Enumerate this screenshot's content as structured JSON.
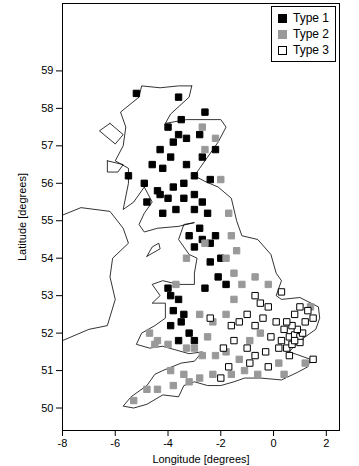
{
  "chart_data": {
    "type": "scatter",
    "x_label": "Longitude [degrees]",
    "y_label": "Latitude [degrees]",
    "xlim": [
      -8,
      2.5
    ],
    "ylim": [
      49.4,
      60.8
    ],
    "xticks": [
      -8,
      -6,
      -4,
      -2,
      0,
      2
    ],
    "yticks": [
      50,
      51,
      52,
      53,
      54,
      55,
      56,
      57,
      58,
      59
    ],
    "grid": false,
    "legend": "top-right",
    "series": [
      {
        "name": "Type 1",
        "color": "#000000",
        "marker": "square",
        "points": [
          [
            -3.6,
            58.3
          ],
          [
            -5.2,
            58.4
          ],
          [
            -3.5,
            57.7
          ],
          [
            -4.0,
            57.5
          ],
          [
            -3.6,
            57.3
          ],
          [
            -3.3,
            57.2
          ],
          [
            -3.8,
            57.1
          ],
          [
            -2.8,
            57.3
          ],
          [
            -4.3,
            56.9
          ],
          [
            -3.9,
            56.7
          ],
          [
            -3.3,
            56.5
          ],
          [
            -4.6,
            56.5
          ],
          [
            -4.2,
            56.4
          ],
          [
            -3.4,
            56.0
          ],
          [
            -4.9,
            56.0
          ],
          [
            -5.5,
            56.2
          ],
          [
            -3.8,
            55.9
          ],
          [
            -4.3,
            55.7
          ],
          [
            -4.0,
            55.6
          ],
          [
            -3.4,
            55.6
          ],
          [
            -3.0,
            55.7
          ],
          [
            -2.7,
            55.5
          ],
          [
            -3.7,
            55.3
          ],
          [
            -4.2,
            55.2
          ],
          [
            -3.0,
            55.3
          ],
          [
            -2.5,
            55.2
          ],
          [
            -2.8,
            54.8
          ],
          [
            -3.2,
            54.6
          ],
          [
            -2.7,
            54.5
          ],
          [
            -3.0,
            54.3
          ],
          [
            -2.4,
            54.4
          ],
          [
            -2.2,
            54.6
          ],
          [
            -2.0,
            54.0
          ],
          [
            -2.4,
            53.9
          ],
          [
            -2.1,
            53.5
          ],
          [
            -1.8,
            53.3
          ],
          [
            -2.6,
            53.2
          ],
          [
            -4.4,
            55.8
          ],
          [
            -4.8,
            55.5
          ],
          [
            -2.2,
            56.9
          ],
          [
            -2.7,
            56.7
          ],
          [
            -3.0,
            56.2
          ],
          [
            -2.4,
            56.1
          ],
          [
            -3.9,
            53.0
          ],
          [
            -3.6,
            52.9
          ],
          [
            -3.8,
            52.6
          ],
          [
            -3.4,
            52.5
          ],
          [
            -3.5,
            52.3
          ],
          [
            -3.9,
            52.2
          ],
          [
            -3.2,
            52.0
          ],
          [
            -3.6,
            51.8
          ],
          [
            -3.0,
            51.8
          ],
          [
            -4.0,
            53.2
          ],
          [
            -2.6,
            57.9
          ]
        ]
      },
      {
        "name": "Type 2",
        "color": "#999999",
        "marker": "square",
        "points": [
          [
            -2.7,
            57.5
          ],
          [
            -2.2,
            57.2
          ],
          [
            -2.6,
            56.9
          ],
          [
            -2.0,
            56.1
          ],
          [
            -1.7,
            55.2
          ],
          [
            -1.6,
            54.6
          ],
          [
            -1.4,
            54.2
          ],
          [
            -1.8,
            54.0
          ],
          [
            -3.3,
            54.0
          ],
          [
            -2.6,
            54.4
          ],
          [
            -1.5,
            53.6
          ],
          [
            -1.2,
            53.3
          ],
          [
            -0.7,
            53.5
          ],
          [
            -1.5,
            52.9
          ],
          [
            -2.3,
            52.3
          ],
          [
            -2.8,
            52.5
          ],
          [
            -2.5,
            51.9
          ],
          [
            -4.7,
            52.0
          ],
          [
            -4.4,
            51.8
          ],
          [
            -4.0,
            51.7
          ],
          [
            -3.3,
            51.6
          ],
          [
            -3.0,
            51.6
          ],
          [
            -2.7,
            51.4
          ],
          [
            -2.2,
            51.4
          ],
          [
            -1.8,
            51.5
          ],
          [
            -1.3,
            51.3
          ],
          [
            -0.9,
            51.8
          ],
          [
            -0.5,
            52.0
          ],
          [
            -4.8,
            50.5
          ],
          [
            -4.4,
            50.5
          ],
          [
            -3.8,
            50.6
          ],
          [
            -3.2,
            50.7
          ],
          [
            -3.9,
            51.0
          ],
          [
            -2.8,
            50.8
          ],
          [
            -2.3,
            50.9
          ],
          [
            -1.6,
            50.9
          ],
          [
            -1.1,
            51.0
          ],
          [
            -0.6,
            50.9
          ],
          [
            0.4,
            50.9
          ],
          [
            0.2,
            51.2
          ],
          [
            1.2,
            51.2
          ],
          [
            1.4,
            52.7
          ],
          [
            -5.3,
            50.2
          ],
          [
            -3.4,
            50.9
          ],
          [
            -1.8,
            52.5
          ],
          [
            -0.2,
            53.3
          ],
          [
            -3.7,
            53.3
          ],
          [
            -4.5,
            51.7
          ]
        ]
      },
      {
        "name": "Type 3",
        "color": "#000000",
        "marker": "open-square",
        "points": [
          [
            -0.7,
            53.0
          ],
          [
            -0.2,
            52.7
          ],
          [
            -1.0,
            52.5
          ],
          [
            -1.3,
            52.3
          ],
          [
            -0.7,
            52.2
          ],
          [
            -0.4,
            52.4
          ],
          [
            0.1,
            52.3
          ],
          [
            0.4,
            52.1
          ],
          [
            -0.1,
            51.9
          ],
          [
            0.3,
            51.8
          ],
          [
            0.6,
            51.9
          ],
          [
            0.8,
            51.95
          ],
          [
            1.0,
            51.9
          ],
          [
            1.1,
            52.0
          ],
          [
            0.9,
            52.1
          ],
          [
            0.7,
            52.2
          ],
          [
            0.5,
            52.3
          ],
          [
            0.8,
            52.5
          ],
          [
            1.2,
            52.3
          ],
          [
            1.5,
            52.4
          ],
          [
            1.3,
            52.6
          ],
          [
            1.0,
            52.7
          ],
          [
            0.5,
            51.6
          ],
          [
            0.7,
            51.7
          ],
          [
            1.0,
            51.75
          ],
          [
            0.8,
            51.8
          ],
          [
            0.2,
            51.6
          ],
          [
            -0.3,
            51.5
          ],
          [
            -0.7,
            51.4
          ],
          [
            -1.0,
            51.6
          ],
          [
            -1.5,
            51.8
          ],
          [
            -1.9,
            51.6
          ],
          [
            -2.0,
            50.8
          ],
          [
            -1.7,
            51.1
          ],
          [
            -0.9,
            51.2
          ],
          [
            -0.2,
            51.1
          ],
          [
            0.6,
            51.4
          ],
          [
            1.5,
            51.3
          ],
          [
            0.3,
            53.1
          ],
          [
            -0.5,
            52.8
          ],
          [
            -1.6,
            52.2
          ],
          [
            -2.4,
            52.4
          ]
        ]
      }
    ],
    "coastlines": [
      [
        [
          -3.1,
          58.6
        ],
        [
          -3.2,
          58.3
        ],
        [
          -3.9,
          57.85
        ],
        [
          -4.1,
          57.6
        ],
        [
          -3.3,
          57.7
        ],
        [
          -2.0,
          57.7
        ],
        [
          -1.8,
          57.5
        ],
        [
          -2.1,
          57.1
        ],
        [
          -2.5,
          56.7
        ],
        [
          -2.8,
          56.4
        ],
        [
          -3.0,
          56.2
        ],
        [
          -2.6,
          56.05
        ],
        [
          -2.1,
          55.9
        ],
        [
          -1.6,
          55.6
        ],
        [
          -1.4,
          55.0
        ],
        [
          -1.2,
          54.6
        ],
        [
          -0.6,
          54.5
        ],
        [
          -0.1,
          54.1
        ],
        [
          0.1,
          53.6
        ],
        [
          0.3,
          53.4
        ],
        [
          0.1,
          53.0
        ],
        [
          0.3,
          52.9
        ],
        [
          1.0,
          52.95
        ],
        [
          1.7,
          52.7
        ],
        [
          1.75,
          52.4
        ],
        [
          1.6,
          52.1
        ],
        [
          1.2,
          51.9
        ],
        [
          0.9,
          51.75
        ],
        [
          0.6,
          51.5
        ],
        [
          1.0,
          51.4
        ],
        [
          1.4,
          51.3
        ],
        [
          1.3,
          51.1
        ],
        [
          0.9,
          50.95
        ],
        [
          0.3,
          50.75
        ],
        [
          -0.5,
          50.8
        ],
        [
          -1.1,
          50.8
        ],
        [
          -1.5,
          50.7
        ],
        [
          -2.0,
          50.6
        ],
        [
          -2.5,
          50.6
        ],
        [
          -3.0,
          50.7
        ],
        [
          -3.4,
          50.6
        ],
        [
          -3.6,
          50.3
        ],
        [
          -4.2,
          50.35
        ],
        [
          -4.8,
          50.1
        ],
        [
          -5.3,
          50.0
        ],
        [
          -5.7,
          50.05
        ],
        [
          -5.4,
          50.3
        ],
        [
          -4.8,
          50.6
        ],
        [
          -4.5,
          50.9
        ],
        [
          -4.2,
          51.0
        ],
        [
          -3.5,
          51.2
        ],
        [
          -3.0,
          51.25
        ],
        [
          -2.7,
          51.5
        ],
        [
          -3.2,
          51.45
        ],
        [
          -3.7,
          51.55
        ],
        [
          -4.2,
          51.65
        ],
        [
          -4.7,
          51.6
        ],
        [
          -5.2,
          51.7
        ],
        [
          -5.0,
          52.0
        ],
        [
          -4.5,
          52.2
        ],
        [
          -4.1,
          52.4
        ],
        [
          -4.1,
          52.8
        ],
        [
          -4.6,
          52.8
        ],
        [
          -4.3,
          53.0
        ],
        [
          -4.6,
          53.3
        ],
        [
          -4.2,
          53.4
        ],
        [
          -3.6,
          53.3
        ],
        [
          -3.0,
          53.3
        ],
        [
          -3.0,
          53.6
        ],
        [
          -2.9,
          54.0
        ],
        [
          -3.2,
          54.1
        ],
        [
          -3.6,
          54.5
        ],
        [
          -3.4,
          54.9
        ],
        [
          -3.0,
          54.95
        ],
        [
          -3.6,
          54.85
        ],
        [
          -4.4,
          54.8
        ],
        [
          -4.9,
          54.7
        ],
        [
          -5.1,
          54.9
        ],
        [
          -4.9,
          55.2
        ],
        [
          -4.6,
          55.5
        ],
        [
          -4.9,
          55.9
        ],
        [
          -5.3,
          55.5
        ],
        [
          -5.7,
          55.3
        ],
        [
          -5.5,
          56.0
        ],
        [
          -5.5,
          56.4
        ],
        [
          -6.0,
          56.6
        ],
        [
          -5.7,
          57.0
        ],
        [
          -5.6,
          57.5
        ],
        [
          -5.8,
          57.9
        ],
        [
          -5.1,
          58.3
        ],
        [
          -5.0,
          58.6
        ],
        [
          -4.3,
          58.55
        ],
        [
          -3.6,
          58.6
        ],
        [
          -3.1,
          58.6
        ]
      ],
      [
        [
          -4.8,
          54.05
        ],
        [
          -4.3,
          54.25
        ],
        [
          -4.35,
          54.4
        ],
        [
          -4.6,
          54.3
        ],
        [
          -4.8,
          54.05
        ]
      ],
      [
        [
          -6.2,
          57.6
        ],
        [
          -5.7,
          57.3
        ],
        [
          -6.0,
          57.05
        ],
        [
          -6.6,
          57.4
        ],
        [
          -6.2,
          57.6
        ]
      ],
      [
        [
          -6.3,
          56.6
        ],
        [
          -5.7,
          56.5
        ],
        [
          -5.9,
          56.3
        ],
        [
          -6.3,
          56.3
        ],
        [
          -6.3,
          56.6
        ]
      ],
      [
        [
          -8.0,
          55.15
        ],
        [
          -7.3,
          55.35
        ],
        [
          -6.2,
          55.25
        ],
        [
          -5.7,
          54.8
        ],
        [
          -5.5,
          54.4
        ],
        [
          -6.1,
          54.0
        ],
        [
          -6.2,
          53.5
        ],
        [
          -6.0,
          52.9
        ],
        [
          -6.3,
          52.2
        ],
        [
          -7.0,
          52.1
        ],
        [
          -8.0,
          51.8
        ]
      ]
    ]
  }
}
